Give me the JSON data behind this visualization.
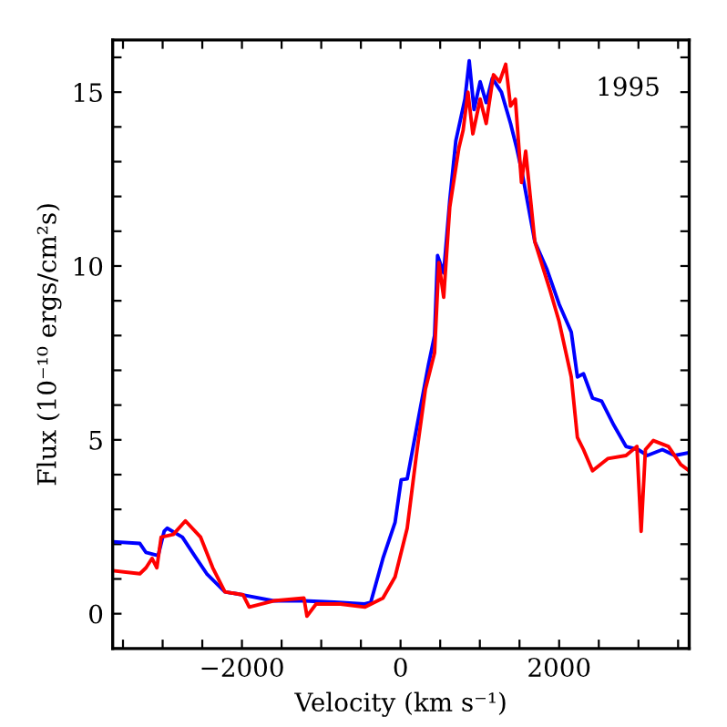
{
  "chart_data": {
    "type": "line",
    "xlabel": "Velocity (km s⁻¹)",
    "ylabel": "Flux (10⁻¹⁰ ergs/cm²s)",
    "annotations": [
      "1995"
    ],
    "xlim": [
      -3630,
      3640
    ],
    "ylim": [
      -1,
      16.5
    ],
    "xticks": [
      {
        "value": -3500,
        "label": null
      },
      {
        "value": -3000,
        "label": null
      },
      {
        "value": -2500,
        "label": null
      },
      {
        "value": -2000,
        "label": "−2000"
      },
      {
        "value": -1500,
        "label": null
      },
      {
        "value": -1000,
        "label": null
      },
      {
        "value": -500,
        "label": null
      },
      0,
      {
        "value": 500,
        "label": null
      },
      {
        "value": 1000,
        "label": null
      },
      {
        "value": 1500,
        "label": null
      },
      2000,
      {
        "value": 2500,
        "label": null
      },
      {
        "value": 3000,
        "label": null
      },
      {
        "value": 3500,
        "label": null
      }
    ],
    "yticks": [
      {
        "value": -1,
        "label": null
      },
      0,
      {
        "value": 1,
        "label": null
      },
      {
        "value": 2,
        "label": null
      },
      {
        "value": 3,
        "label": null
      },
      {
        "value": 4,
        "label": null
      },
      5,
      {
        "value": 6,
        "label": null
      },
      {
        "value": 7,
        "label": null
      },
      {
        "value": 8,
        "label": null
      },
      {
        "value": 9,
        "label": null
      },
      10,
      {
        "value": 11,
        "label": null
      },
      {
        "value": 12,
        "label": null
      },
      {
        "value": 13,
        "label": null
      },
      {
        "value": 14,
        "label": null
      },
      15,
      {
        "value": 16,
        "label": null
      }
    ],
    "grid": false,
    "legend": false,
    "series": [
      {
        "color": "#0000ff",
        "x": [
          -3630,
          -3287,
          -3210,
          -3057,
          -2981,
          -2943,
          -2751,
          -2598,
          -2444,
          -2215,
          -1985,
          -1602,
          -1218,
          -835,
          -452,
          -375,
          -222,
          -69,
          8,
          84,
          238,
          352,
          429,
          467,
          544,
          621,
          697,
          812,
          866,
          927,
          1004,
          1080,
          1157,
          1272,
          1387,
          1464,
          1540,
          1693,
          1847,
          2000,
          2153,
          2230,
          2307,
          2421,
          2536,
          2690,
          2843,
          2996,
          3111,
          3302,
          3456,
          3640
        ],
        "values": [
          2.07,
          2.02,
          1.76,
          1.67,
          2.37,
          2.46,
          2.2,
          1.67,
          1.15,
          0.63,
          0.54,
          0.37,
          0.37,
          0.33,
          0.28,
          0.33,
          1.59,
          2.63,
          3.85,
          3.88,
          5.77,
          7.16,
          8.0,
          10.3,
          9.8,
          11.9,
          13.6,
          14.8,
          15.9,
          14.5,
          15.3,
          14.7,
          15.4,
          15.0,
          14.1,
          13.4,
          12.6,
          10.7,
          9.9,
          8.9,
          8.1,
          6.81,
          6.9,
          6.2,
          6.11,
          5.42,
          4.81,
          4.72,
          4.55,
          4.72,
          4.55,
          4.63
        ]
      },
      {
        "color": "#ff0000",
        "x": [
          -3630,
          -3287,
          -3210,
          -3134,
          -3073,
          -3019,
          -2866,
          -2713,
          -2521,
          -2368,
          -2215,
          -1985,
          -1908,
          -1602,
          -1218,
          -1180,
          -1065,
          -759,
          -452,
          -222,
          -69,
          84,
          199,
          314,
          429,
          483,
          544,
          621,
          736,
          789,
          850,
          912,
          1004,
          1080,
          1172,
          1249,
          1326,
          1387,
          1448,
          1525,
          1578,
          1693,
          1885,
          2000,
          2153,
          2230,
          2307,
          2421,
          2613,
          2843,
          2981,
          3034,
          3088,
          3188,
          3379,
          3533,
          3640
        ],
        "values": [
          1.24,
          1.15,
          1.32,
          1.59,
          1.32,
          2.2,
          2.28,
          2.67,
          2.2,
          1.32,
          0.63,
          0.54,
          0.19,
          0.37,
          0.45,
          -0.07,
          0.28,
          0.28,
          0.19,
          0.45,
          1.06,
          2.46,
          4.55,
          6.46,
          7.5,
          10.1,
          9.1,
          11.7,
          13.4,
          13.9,
          15.0,
          13.8,
          14.8,
          14.1,
          15.5,
          15.3,
          15.8,
          14.6,
          14.8,
          12.4,
          13.3,
          10.7,
          9.3,
          8.4,
          6.81,
          5.07,
          4.72,
          4.11,
          4.46,
          4.55,
          4.81,
          2.37,
          4.72,
          4.98,
          4.81,
          4.29,
          4.11
        ]
      }
    ]
  }
}
